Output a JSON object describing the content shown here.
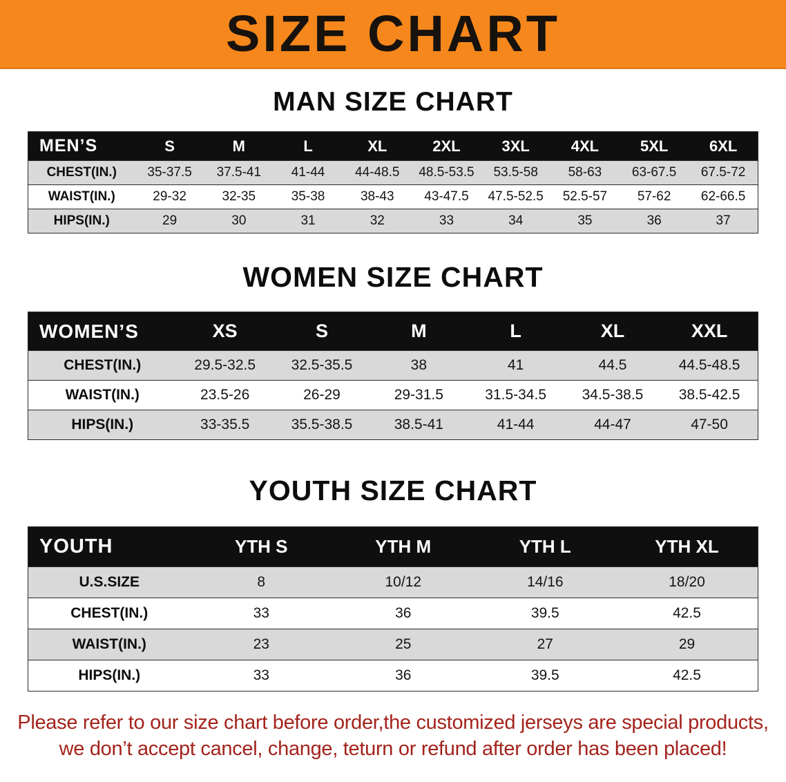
{
  "banner": {
    "title": "SIZE CHART"
  },
  "colors": {
    "banner_bg": "#f6871c",
    "header_bg": "#0f0f0f",
    "row_alt_bg": "#d9d9d9",
    "footer_text": "#a3231c"
  },
  "sections": [
    {
      "id": "men",
      "heading": "MAN SIZE CHART",
      "table": {
        "header": [
          "MEN’S",
          "S",
          "M",
          "L",
          "XL",
          "2XL",
          "3XL",
          "4XL",
          "5XL",
          "6XL"
        ],
        "rows": [
          [
            "CHEST(IN.)",
            "35-37.5",
            "37.5-41",
            "41-44",
            "44-48.5",
            "48.5-53.5",
            "53.5-58",
            "58-63",
            "63-67.5",
            "67.5-72"
          ],
          [
            "WAIST(IN.)",
            "29-32",
            "32-35",
            "35-38",
            "38-43",
            "43-47.5",
            "47.5-52.5",
            "52.5-57",
            "57-62",
            "62-66.5"
          ],
          [
            "HIPS(IN.)",
            "29",
            "30",
            "31",
            "32",
            "33",
            "34",
            "35",
            "36",
            "37"
          ]
        ]
      }
    },
    {
      "id": "women",
      "heading": "WOMEN SIZE CHART",
      "table": {
        "header": [
          "WOMEN’S",
          "XS",
          "S",
          "M",
          "L",
          "XL",
          "XXL"
        ],
        "rows": [
          [
            "CHEST(IN.)",
            "29.5-32.5",
            "32.5-35.5",
            "38",
            "41",
            "44.5",
            "44.5-48.5"
          ],
          [
            "WAIST(IN.)",
            "23.5-26",
            "26-29",
            "29-31.5",
            "31.5-34.5",
            "34.5-38.5",
            "38.5-42.5"
          ],
          [
            "HIPS(IN.)",
            "33-35.5",
            "35.5-38.5",
            "38.5-41",
            "41-44",
            "44-47",
            "47-50"
          ]
        ]
      }
    },
    {
      "id": "youth",
      "heading": "YOUTH SIZE CHART",
      "table": {
        "header": [
          "YOUTH",
          "YTH S",
          "YTH M",
          "YTH L",
          "YTH XL"
        ],
        "rows": [
          [
            "U.S.SIZE",
            "8",
            "10/12",
            "14/16",
            "18/20"
          ],
          [
            "CHEST(IN.)",
            "33",
            "36",
            "39.5",
            "42.5"
          ],
          [
            "WAIST(IN.)",
            "23",
            "25",
            "27",
            "29"
          ],
          [
            "HIPS(IN.)",
            "33",
            "36",
            "39.5",
            "42.5"
          ]
        ]
      }
    }
  ],
  "footer": {
    "line1": "Please refer to our size chart before order,the customized jerseys are special products,",
    "line2": "we don’t accept cancel, change, teturn or refund after order has been placed!"
  }
}
